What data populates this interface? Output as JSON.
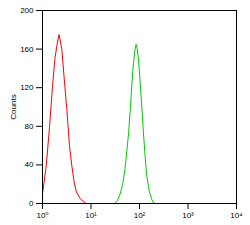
{
  "chart_data": {
    "type": "line",
    "log": "x",
    "y_label": "Counts",
    "xlim": [
      1,
      10000
    ],
    "xticks": [
      {
        "value": 1,
        "label": "10⁰"
      },
      {
        "value": 10,
        "label": "10¹"
      },
      {
        "value": 100,
        "label": "10²"
      },
      {
        "value": 1000,
        "label": "10³"
      },
      {
        "value": 10000,
        "label": "10⁴"
      }
    ],
    "ylim": [
      0,
      200
    ],
    "yticks": [
      0,
      40,
      80,
      120,
      160,
      200
    ],
    "series": [
      {
        "color": "#ff0000",
        "x": [
          1.0,
          1.2,
          1.4,
          1.6,
          1.8,
          2.0,
          2.2,
          2.5,
          2.8,
          3.2,
          3.6,
          4.0,
          4.5,
          5.0,
          6.0,
          7.0,
          8.0
        ],
        "values": [
          10,
          40,
          80,
          120,
          150,
          165,
          175,
          160,
          130,
          95,
          60,
          40,
          22,
          12,
          5,
          2,
          0
        ]
      },
      {
        "color": "#00cc00",
        "x": [
          30,
          35,
          40,
          45,
          50,
          55,
          60,
          65,
          70,
          75,
          80,
          85,
          90,
          95,
          100,
          110,
          120,
          130,
          140,
          160,
          180,
          200
        ],
        "values": [
          0,
          3,
          10,
          20,
          35,
          55,
          75,
          100,
          125,
          145,
          158,
          165,
          160,
          150,
          135,
          105,
          75,
          50,
          30,
          12,
          4,
          0
        ]
      }
    ]
  }
}
